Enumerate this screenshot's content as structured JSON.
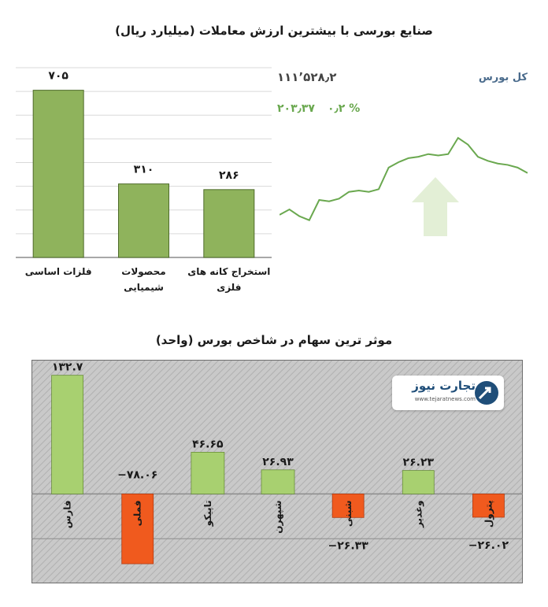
{
  "chart_data": [
    {
      "type": "bar",
      "title": "صنایع بورسی با بیشترین ارزش معاملات  (میلیارد ریال)",
      "categories": [
        "فلزات اساسی",
        "محصولات شیمیایی",
        "استخراج کانه های فلزی"
      ],
      "values": [
        705,
        310,
        286
      ],
      "value_labels": [
        "۷۰۵",
        "۳۱۰",
        "۲۸۶"
      ],
      "ylim": [
        0,
        800
      ],
      "grid": true,
      "colors": {
        "bar": "#8fb35c",
        "bar_border": "#4e6b2a"
      }
    },
    {
      "type": "line",
      "index_name": "کل بورس",
      "index_value": "۱۱۱٬۵۲۸٫۲",
      "change": "۲۰۳٫۳۷",
      "change_percent": "۰٫۲ %",
      "trend": "up",
      "values": [
        10,
        14,
        9,
        6,
        21,
        20,
        22,
        27,
        28,
        27,
        29,
        45,
        49,
        52,
        53,
        55,
        54,
        55,
        67,
        62,
        53,
        50,
        48,
        47,
        45,
        41
      ],
      "ylim": [
        0,
        70
      ],
      "colors": {
        "line": "#6aa84f",
        "arrow": "#e3efd6"
      }
    },
    {
      "type": "bar",
      "title": "موثر ترین سهام در شاخص بورس (واحد)",
      "categories": [
        "فارس",
        "فملی",
        "تاپیکو",
        "شپهرن",
        "شبنی",
        "وغدیر",
        "پترول"
      ],
      "values": [
        132.7,
        -78.06,
        46.65,
        26.93,
        -26.33,
        26.23,
        -26.02
      ],
      "value_labels": [
        "۱۳۲.۷",
        "−۷۸.۰۶",
        "۴۶.۶۵",
        "۲۶.۹۳",
        "−۲۶.۳۳",
        "۲۶.۲۳",
        "−۲۶.۰۲"
      ],
      "ylim": [
        -100,
        150
      ],
      "grid": true,
      "colors": {
        "positive": "#a8d070",
        "negative": "#f05a1e",
        "background": "#c9c9c9"
      }
    }
  ],
  "watermark": {
    "brand": "تجارت نیوز",
    "url": "www.tejaratnews.com"
  }
}
